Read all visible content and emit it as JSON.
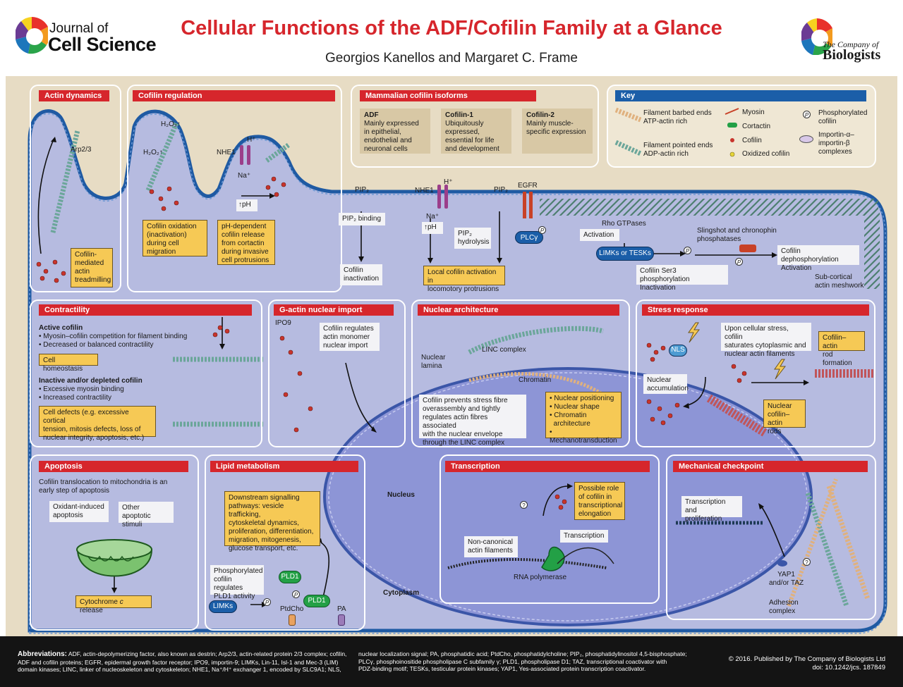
{
  "header": {
    "journal_top": "Journal of",
    "journal_bottom": "Cell Science",
    "title": "Cellular Functions of the ADF/Cofilin Family at a Glance",
    "authors": "Georgios Kanellos and Margaret C. Frame",
    "publisher_top": "The Company of",
    "publisher_bottom": "Biologists"
  },
  "colors": {
    "accent_red": "#d6262c",
    "key_blue": "#1b5ea8",
    "membrane": "#1f5aa3",
    "cell": "#b6bbe0",
    "nucleus": "#8d95d6",
    "box_yellow": "#f6c955"
  },
  "actin_dynamics": {
    "title": "Actin dynamics",
    "arp": "Arp2/3",
    "treadmill": "Cofilin-\nmediated\nactin\ntreadmilling"
  },
  "cofilin_regulation": {
    "title": "Cofilin regulation",
    "h2o2_a": "H₂O₂↑",
    "h2o2_b": "H₂O₂↑",
    "nhe1": "NHE1",
    "hplus": "H⁺",
    "naplus": "Na⁺",
    "ph": "↑pH",
    "oxidation_box": "Cofilin oxidation\n(inactivation)\nduring cell\nmigration",
    "ph_box": "pH-dependent\ncofilin release\nfrom cortactin\nduring invasive\ncell protrusions"
  },
  "isoforms": {
    "title": "Mammalian cofilin isoforms",
    "items": [
      {
        "name": "ADF",
        "desc": "Mainly expressed\nin epithelial,\nendothelial and\nneuronal cells"
      },
      {
        "name": "Cofilin-1",
        "desc": "Ubiquitously\nexpressed,\nessential for life\nand development"
      },
      {
        "name": "Cofilin-2",
        "desc": "Mainly muscle-\nspecific expression"
      }
    ]
  },
  "key": {
    "title": "Key",
    "barbed": "Filament barbed ends\nATP-actin rich",
    "pointed": "Filament pointed ends\nADP-actin rich",
    "myosin": "Myosin",
    "cortactin": "Cortactin",
    "cofilin": "Cofilin",
    "oxidized": "Oxidized cofilin",
    "phospho": "Phosphorylated\ncofilin",
    "importin": "Importin-α–\nimportin-β\ncomplexes"
  },
  "membrane_labels": {
    "pip2_a": "PIP₂",
    "pip2_binding": "PIP₂ binding",
    "cofilin_inactivation": "Cofilin\ninactivation",
    "nhe1": "NHE1",
    "hplus": "H⁺",
    "naplus": "Na⁺",
    "ph": "↑pH",
    "pip2_b": "PIP₂",
    "pip2_hydrolysis": "PIP₂\nhydrolysis",
    "egfr": "EGFR",
    "plc": "PLCγ",
    "local_activation": "Local cofilin activation in\nlocomotory protrusions",
    "rho": "Rho GTPases",
    "activation": "Activation",
    "limk": "LIMKs or TESKs",
    "slingshot": "Slingshot and chronophin\nphosphatases",
    "dephos": "Cofilin dephosphorylation\nActivation",
    "ser3": "Cofilin Ser3 phosphorylation\nInactivation",
    "meshwork": "Sub-cortical\nactin meshwork",
    "p": "P"
  },
  "contractility": {
    "title": "Contractility",
    "active_head": "Active cofilin",
    "active_items": [
      "• Myosin–cofilin competition for filament binding",
      "• Decreased or balanced contractility"
    ],
    "homeostasis": "Cell homeostasis",
    "inactive_head": "Inactive and/or depleted cofilin",
    "inactive_items": [
      "• Excessive myosin binding",
      "• Increased contractility"
    ],
    "defects": "Cell defects (e.g. excessive cortical\ntension, mitosis defects, loss of\nnuclear integrity, apoptosis, etc.)"
  },
  "nuclear_import": {
    "title": "G-actin nuclear import",
    "ipo9": "IPO9",
    "box": "Cofilin regulates\nactin monomer\nnuclear import"
  },
  "nuclear_architecture": {
    "title": "Nuclear architecture",
    "linc": "LINC complex",
    "lamina": "Nuclear\nlamina",
    "chromatin": "Chromatin",
    "box": "Cofilin prevents stress fibre\noverassembly and tightly\nregulates actin fibres associated\nwith the nuclear envelope\nthrough the LINC complex",
    "list": [
      "• Nuclear positioning",
      "• Nuclear shape",
      "• Chromatin",
      "  architecture",
      "• Mechanotransduction"
    ]
  },
  "stress": {
    "title": "Stress response",
    "nls": "NLS",
    "box": "Upon cellular stress, cofilin\nsaturates cytoplasmic and\nnuclear actin filaments",
    "rod": "Cofilin–actin\nrod formation",
    "accum": "Nuclear\naccumulation",
    "nuclear_rods": "Nuclear\ncofilin–actin\nrods"
  },
  "apoptosis": {
    "title": "Apoptosis",
    "intro": "Cofilin translocation to mitochondria is an\nearly step of apoptosis",
    "oxidant": "Oxidant-induced\napoptosis",
    "other": "Other apoptotic\nstimuli",
    "cyto_a": "Cytochrome ",
    "cyto_c": "c",
    "cyto_b": " release"
  },
  "lipid": {
    "title": "Lipid metabolism",
    "box": "Downstream signalling\npathways: vesicle trafficking,\ncytoskeletal dynamics,\nproliferation, differentiation,\nmigration, mitogenesis,\nglucose transport, etc.",
    "phospho": "Phosphorylated\ncofilin regulates\nPLD1 activity",
    "pld1_a": "PLD1",
    "pld1_b": "PLD1",
    "limks": "LIMKs",
    "ptdcho": "PtdCho",
    "pa": "PA"
  },
  "compartments": {
    "nucleus": "Nucleus",
    "cytoplasm": "Cytoplasm"
  },
  "transcription": {
    "title": "Transcription",
    "role": "Possible role\nof cofilin in\ntranscriptional\nelongation",
    "noncanon": "Non-canonical\nactin filaments",
    "trans": "Transcription",
    "polymerase": "RNA polymerase",
    "q": "?"
  },
  "mechanical": {
    "title": "Mechanical checkpoint",
    "tp": "Transcription and\nproliferation",
    "yap": "YAP1\nand/or TAZ",
    "adhesion": "Adhesion\ncomplex",
    "q": "?"
  },
  "footer": {
    "abbr_head": "Abbreviations:",
    "abbr_a": "ADF, actin-depolymerizing factor, also known as destrin; Arp2/3, actin-related protein 2/3 complex; cofilin,\nADF and cofilin proteins; EGFR, epidermal growth factor receptor; IPO9, importin-9; LIMKs, Lin-11, Isl-1 and Mec-3 (LIM)\ndomain kinases; LINC, linker of nucleoskeleton and cytoskeleton; NHE1, Na⁺/H⁺ exchanger 1, encoded by SLC9A1; NLS,",
    "abbr_b": "nuclear localization signal; PA, phosphatidic acid; PtdCho, phosphatidylcholine; PIP₂, phosphatidylinositol 4,5-bisphosphate;\nPLCγ, phosphoinositide phospholipase C subfamily γ; PLD1, phospholipase D1; TAZ, transcriptional coactivator with\nPDZ-binding motif; TESKs, testicular protein kinases; YAP1, Yes-associated protein transcription coactivator.",
    "copyright": "© 2016. Published by The Company of Biologists Ltd",
    "doi": "doi: 10.1242/jcs. 187849"
  }
}
